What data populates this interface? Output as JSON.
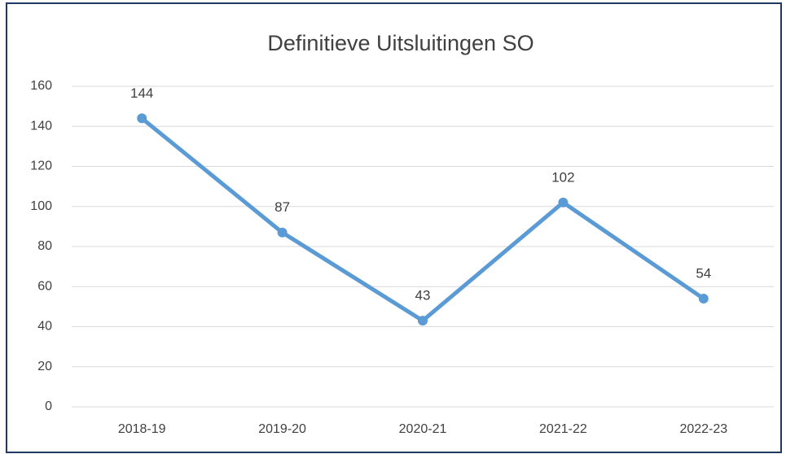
{
  "chart_data": {
    "type": "line",
    "title": "Definitieve Uitsluitingen SO",
    "categories": [
      "2018-19",
      "2019-20",
      "2020-21",
      "2021-22",
      "2022-23"
    ],
    "values": [
      144,
      87,
      43,
      102,
      54
    ],
    "color": "#5b9bd5",
    "ylim": [
      0,
      160
    ],
    "yticks": [
      0,
      20,
      40,
      60,
      80,
      100,
      120,
      140,
      160
    ],
    "grid": true
  }
}
